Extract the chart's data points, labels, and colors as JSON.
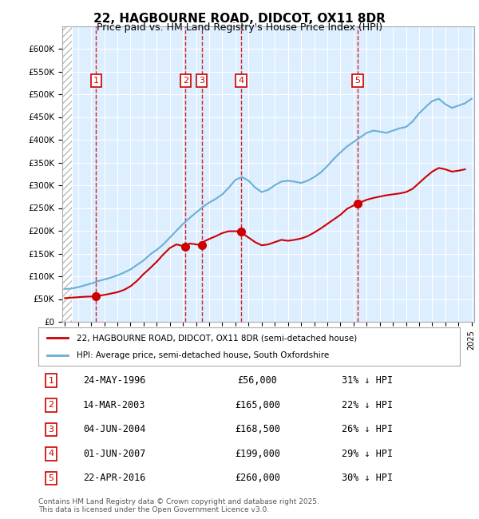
{
  "title1": "22, HAGBOURNE ROAD, DIDCOT, OX11 8DR",
  "title2": "Price paid vs. HM Land Registry's House Price Index (HPI)",
  "hpi_years": [
    1994,
    1994.5,
    1995,
    1995.5,
    1996,
    1996.5,
    1997,
    1997.5,
    1998,
    1998.5,
    1999,
    1999.5,
    2000,
    2000.5,
    2001,
    2001.5,
    2002,
    2002.5,
    2003,
    2003.5,
    2004,
    2004.5,
    2005,
    2005.5,
    2006,
    2006.5,
    2007,
    2007.5,
    2008,
    2008.5,
    2009,
    2009.5,
    2010,
    2010.5,
    2011,
    2011.5,
    2012,
    2012.5,
    2013,
    2013.5,
    2014,
    2014.5,
    2015,
    2015.5,
    2016,
    2016.5,
    2017,
    2017.5,
    2018,
    2018.5,
    2019,
    2019.5,
    2020,
    2020.5,
    2021,
    2021.5,
    2022,
    2022.5,
    2023,
    2023.5,
    2024,
    2024.5,
    2025
  ],
  "hpi_values": [
    72000,
    73000,
    76000,
    80000,
    84000,
    89000,
    93000,
    97000,
    102000,
    108000,
    115000,
    125000,
    135000,
    148000,
    158000,
    170000,
    185000,
    200000,
    215000,
    228000,
    240000,
    252000,
    262000,
    270000,
    280000,
    295000,
    312000,
    318000,
    310000,
    295000,
    285000,
    290000,
    300000,
    308000,
    310000,
    308000,
    305000,
    310000,
    318000,
    328000,
    342000,
    358000,
    372000,
    385000,
    395000,
    405000,
    415000,
    420000,
    418000,
    415000,
    420000,
    425000,
    428000,
    440000,
    458000,
    472000,
    485000,
    490000,
    478000,
    470000,
    475000,
    480000,
    490000
  ],
  "price_years": [
    1994,
    1994.25,
    1994.5,
    1994.75,
    1995,
    1995.5,
    1996.4,
    1996.5,
    1997,
    1997.5,
    1998,
    1998.5,
    1999,
    1999.5,
    2000,
    2000.5,
    2001,
    2001.5,
    2002,
    2002.5,
    2003.2,
    2003.5,
    2004.4,
    2004.5,
    2005,
    2005.5,
    2006,
    2006.5,
    2007.4,
    2007.5,
    2008,
    2008.5,
    2009,
    2009.5,
    2010,
    2010.5,
    2011,
    2011.5,
    2012,
    2012.5,
    2013,
    2013.5,
    2014,
    2014.5,
    2015,
    2015.5,
    2016.3,
    2016.5,
    2017,
    2017.5,
    2018,
    2018.5,
    2019,
    2019.5,
    2020,
    2020.5,
    2021,
    2021.5,
    2022,
    2022.5,
    2023,
    2023.5,
    2024,
    2024.5
  ],
  "price_values": [
    52000,
    52500,
    53000,
    53500,
    54000,
    55000,
    56000,
    57000,
    59000,
    62000,
    65000,
    70000,
    78000,
    90000,
    105000,
    118000,
    132000,
    148000,
    162000,
    170000,
    165000,
    172000,
    168500,
    175000,
    182000,
    188000,
    195000,
    199000,
    199000,
    195000,
    185000,
    175000,
    168000,
    170000,
    175000,
    180000,
    178000,
    180000,
    183000,
    188000,
    196000,
    205000,
    215000,
    225000,
    235000,
    248000,
    260000,
    262000,
    268000,
    272000,
    275000,
    278000,
    280000,
    282000,
    285000,
    292000,
    305000,
    318000,
    330000,
    338000,
    335000,
    330000,
    332000,
    335000
  ],
  "sales": [
    {
      "num": 1,
      "year": 1996.38,
      "price": 56000,
      "label": "1"
    },
    {
      "num": 2,
      "year": 2003.2,
      "price": 165000,
      "label": "2"
    },
    {
      "num": 3,
      "year": 2004.42,
      "price": 168500,
      "label": "3"
    },
    {
      "num": 4,
      "year": 2007.42,
      "price": 199000,
      "label": "4"
    },
    {
      "num": 5,
      "year": 2016.31,
      "price": 260000,
      "label": "5"
    }
  ],
  "vline_years": [
    1996.38,
    2003.2,
    2004.42,
    2007.42,
    2016.31
  ],
  "hpi_color": "#6baed6",
  "price_color": "#cc0000",
  "vline_color": "#cc0000",
  "bg_color": "#ddeeff",
  "hatch_color": "#bbbbbb",
  "ylim": [
    0,
    650000
  ],
  "xlim_start": 1993.8,
  "xlim_end": 2025.2,
  "yticks": [
    0,
    50000,
    100000,
    150000,
    200000,
    250000,
    300000,
    350000,
    400000,
    450000,
    500000,
    550000,
    600000
  ],
  "xticks": [
    1994,
    1995,
    1996,
    1997,
    1998,
    1999,
    2000,
    2001,
    2002,
    2003,
    2004,
    2005,
    2006,
    2007,
    2008,
    2009,
    2010,
    2011,
    2012,
    2013,
    2014,
    2015,
    2016,
    2017,
    2018,
    2019,
    2020,
    2021,
    2022,
    2023,
    2024,
    2025
  ],
  "table_data": [
    {
      "num": 1,
      "date": "24-MAY-1996",
      "price": "£56,000",
      "hpi": "31% ↓ HPI"
    },
    {
      "num": 2,
      "date": "14-MAR-2003",
      "price": "£165,000",
      "hpi": "22% ↓ HPI"
    },
    {
      "num": 3,
      "date": "04-JUN-2004",
      "price": "£168,500",
      "hpi": "26% ↓ HPI"
    },
    {
      "num": 4,
      "date": "01-JUN-2007",
      "price": "£199,000",
      "hpi": "29% ↓ HPI"
    },
    {
      "num": 5,
      "date": "22-APR-2016",
      "price": "£260,000",
      "hpi": "30% ↓ HPI"
    }
  ],
  "legend_line1": "22, HAGBOURNE ROAD, DIDCOT, OX11 8DR (semi-detached house)",
  "legend_line2": "HPI: Average price, semi-detached house, South Oxfordshire",
  "footer": "Contains HM Land Registry data © Crown copyright and database right 2025.\nThis data is licensed under the Open Government Licence v3.0."
}
